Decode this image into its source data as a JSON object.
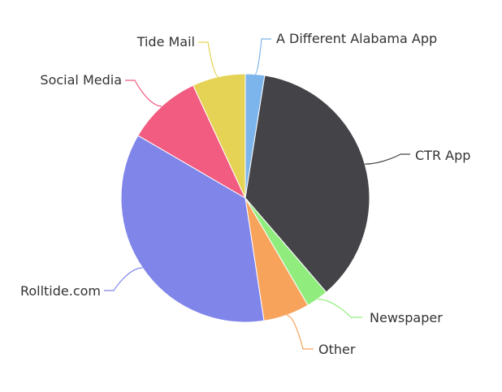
{
  "chart_data": {
    "type": "pie",
    "title": "",
    "slices": [
      {
        "label": "A Different Alabama App",
        "value": 2.5,
        "color": "#7cb5ec"
      },
      {
        "label": "CTR App",
        "value": 36.2,
        "color": "#434348"
      },
      {
        "label": "Newspaper",
        "value": 2.9,
        "color": "#90ed7d"
      },
      {
        "label": "Other",
        "value": 6.0,
        "color": "#f7a35c"
      },
      {
        "label": "Rolltide.com",
        "value": 35.8,
        "color": "#8085e9"
      },
      {
        "label": "Social Media",
        "value": 9.7,
        "color": "#f15c80"
      },
      {
        "label": "Tide Mail",
        "value": 6.9,
        "color": "#e4d354"
      }
    ],
    "start_angle_deg": 0,
    "direction": "clockwise",
    "border_color": "#ffffff",
    "legend": "none"
  }
}
